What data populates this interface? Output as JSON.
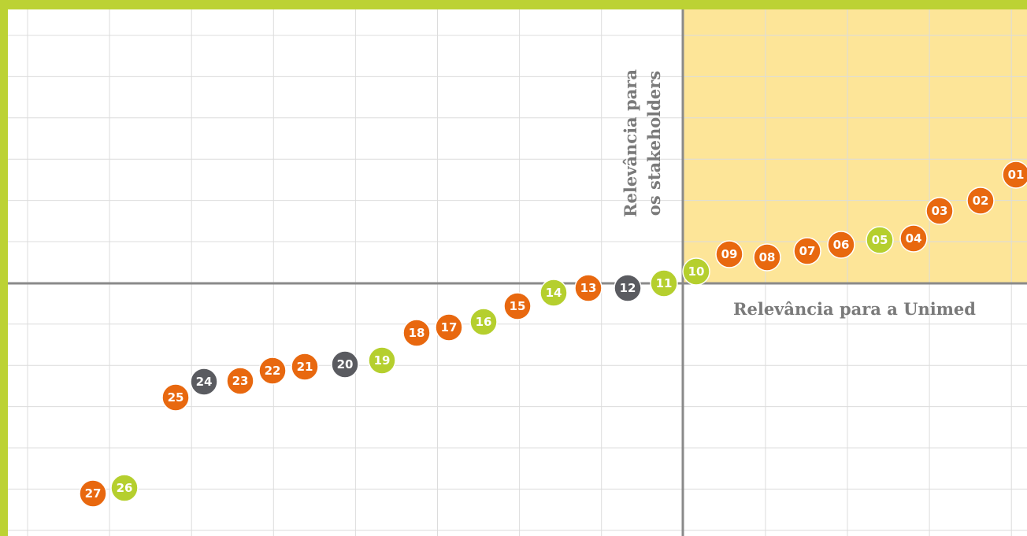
{
  "axis_labels": {
    "vertical": [
      "Relevância para",
      "os stakeholders"
    ],
    "horizontal": "Relevância para a Unimed"
  },
  "nodes": [
    {
      "label": "01",
      "color": "#e8680f"
    },
    {
      "label": "02",
      "color": "#e8680f"
    },
    {
      "label": "03",
      "color": "#e8680f"
    },
    {
      "label": "04",
      "color": "#e8680f"
    },
    {
      "label": "05",
      "color": "#b5cf2e"
    },
    {
      "label": "06",
      "color": "#e8680f"
    },
    {
      "label": "07",
      "color": "#e8680f"
    },
    {
      "label": "08",
      "color": "#e8680f"
    },
    {
      "label": "09",
      "color": "#e8680f"
    },
    {
      "label": "10",
      "color": "#b5cf2e"
    },
    {
      "label": "11",
      "color": "#b5cf2e"
    },
    {
      "label": "12",
      "color": "#5a5b60"
    },
    {
      "label": "13",
      "color": "#e8680f"
    },
    {
      "label": "14",
      "color": "#b5cf2e"
    },
    {
      "label": "15",
      "color": "#e8680f"
    },
    {
      "label": "16",
      "color": "#b5cf2e"
    },
    {
      "label": "17",
      "color": "#e8680f"
    },
    {
      "label": "18",
      "color": "#e8680f"
    },
    {
      "label": "19",
      "color": "#b5cf2e"
    },
    {
      "label": "20",
      "color": "#5a5b60"
    },
    {
      "label": "21",
      "color": "#e8680f"
    },
    {
      "label": "22",
      "color": "#e8680f"
    },
    {
      "label": "23",
      "color": "#e8680f"
    },
    {
      "label": "24",
      "color": "#5a5b60"
    },
    {
      "label": "25",
      "color": "#e8680f"
    },
    {
      "label": "26",
      "color": "#b5cf2e"
    },
    {
      "label": "27",
      "color": "#e8680f"
    }
  ]
}
